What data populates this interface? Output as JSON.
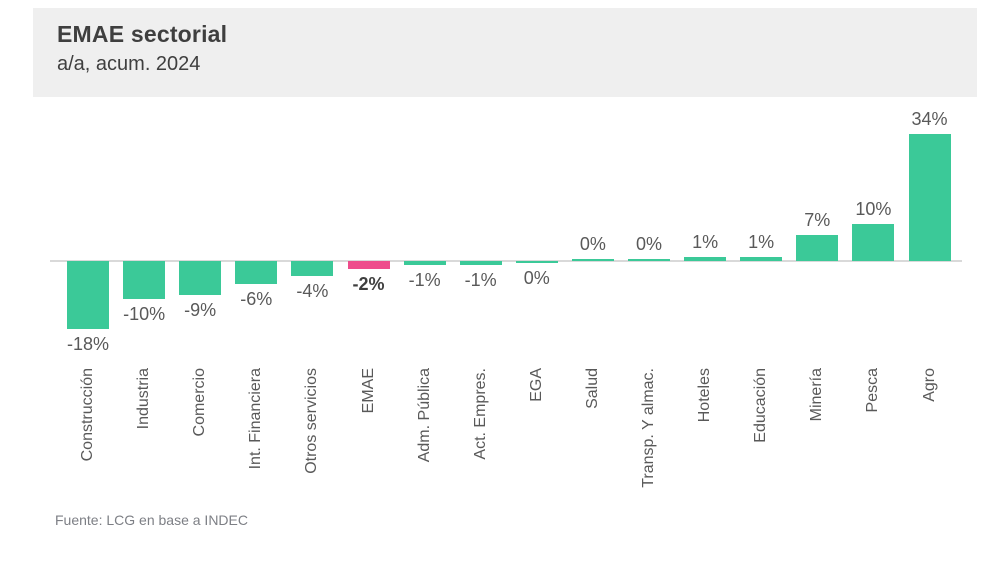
{
  "header": {
    "title": "EMAE sectorial",
    "subtitle": "a/a, acum. 2024"
  },
  "footer": {
    "source": "Fuente: LCG en base a INDEC"
  },
  "colors": {
    "bar": "#3bc998",
    "highlight_bar": "#ee4d8c",
    "axis_line": "#d9d9d9",
    "header_band": "#efefef",
    "title_text": "#3f3f3f",
    "label_text": "#595959",
    "source_text": "#7d7f85"
  },
  "chart_data": {
    "type": "bar",
    "title": "EMAE sectorial",
    "subtitle": "a/a, acum. 2024",
    "categories": [
      "Construcción",
      "Industria",
      "Comercio",
      "Int. Financiera",
      "Otros servicios",
      "EMAE",
      "Adm. Pública",
      "Act. Empres.",
      "EGA",
      "Salud",
      "Transp. Y almac.",
      "Hoteles",
      "Educación",
      "Minería",
      "Pesca",
      "Agro"
    ],
    "values": [
      -18,
      -10,
      -9,
      -6,
      -4,
      -2,
      -1,
      -1,
      0,
      0,
      0,
      1,
      1,
      7,
      10,
      34
    ],
    "value_labels": [
      "-18%",
      "-10%",
      "-9%",
      "-6%",
      "-4%",
      "-2%",
      "-1%",
      "-1%",
      "0%",
      "0%",
      "0%",
      "1%",
      "1%",
      "7%",
      "10%",
      "34%"
    ],
    "label_side": [
      "below",
      "below",
      "below",
      "below",
      "below",
      "below",
      "below",
      "below",
      "below",
      "above",
      "above",
      "above",
      "above",
      "above",
      "above",
      "above"
    ],
    "highlight_index": 5,
    "highlight_category": "EMAE",
    "xlabel": "",
    "ylabel": "",
    "ylim": [
      -20,
      36
    ],
    "grid": false,
    "legend": false,
    "bar_label_position": "outside_end",
    "category_label_rotation_deg": 90,
    "source": "Fuente: LCG en base a INDEC"
  }
}
